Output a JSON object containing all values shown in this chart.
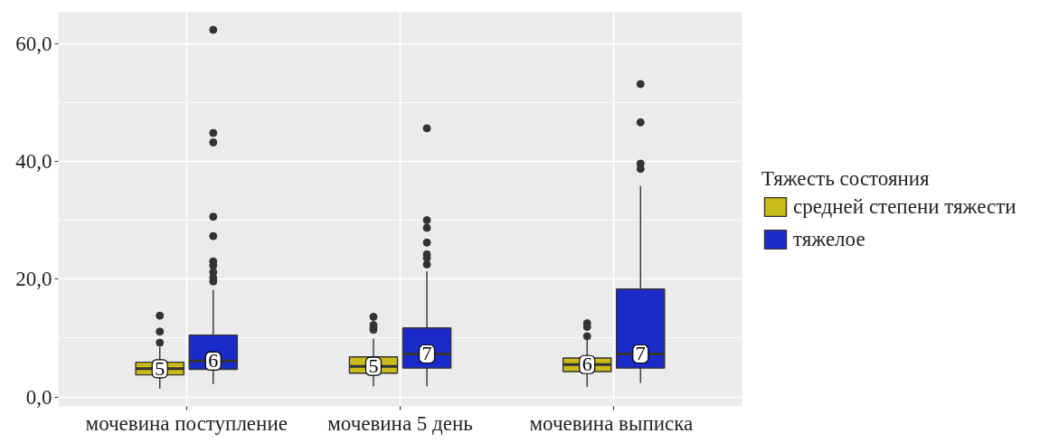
{
  "chart_data": {
    "type": "box",
    "categories": [
      "мочевина поступление",
      "мочевина 5 день",
      "мочевина  выписка"
    ],
    "series": [
      {
        "name": "средней степени тяжести",
        "color": "#c9bb18",
        "value_labels": [
          "5",
          "5",
          "6"
        ],
        "boxes": [
          {
            "low": 1.4,
            "q1": 3.75,
            "median": 4.8,
            "q3": 5.9,
            "high": 8.5,
            "outliers": [
              9.2,
              11.1,
              13.8
            ]
          },
          {
            "low": 1.8,
            "q1": 4.05,
            "median": 5.2,
            "q3": 6.8,
            "high": 9.9,
            "outliers": [
              11.4,
              11.8,
              12.2,
              13.6
            ]
          },
          {
            "low": 1.7,
            "q1": 4.3,
            "median": 5.5,
            "q3": 6.6,
            "high": 9.7,
            "outliers": [
              10.3,
              11.9,
              12.5
            ]
          }
        ]
      },
      {
        "name": "тяжелое",
        "color": "#1b2bca",
        "value_labels": [
          "6",
          "7",
          "7"
        ],
        "boxes": [
          {
            "low": 2.2,
            "q1": 4.7,
            "median": 6.1,
            "q3": 10.5,
            "high": 18.2,
            "outliers": [
              19.6,
              20.2,
              21.2,
              22.3,
              23.0,
              27.3,
              30.6,
              43.2,
              44.8,
              62.3
            ]
          },
          {
            "low": 1.8,
            "q1": 4.9,
            "median": 7.3,
            "q3": 11.7,
            "high": 21.3,
            "outliers": [
              22.5,
              23.6,
              24.2,
              26.2,
              28.7,
              30.0,
              45.6
            ]
          },
          {
            "low": 2.4,
            "q1": 4.9,
            "median": 7.3,
            "q3": 18.3,
            "high": 35.8,
            "outliers": [
              38.7,
              39.6,
              46.6,
              53.1
            ]
          }
        ]
      }
    ],
    "ylim": [
      -1.6,
      65.3
    ],
    "yticks": [
      {
        "value": 0,
        "label": "0,0"
      },
      {
        "value": 20,
        "label": "20,0"
      },
      {
        "value": 40,
        "label": "40,0"
      },
      {
        "value": 60,
        "label": "60,0"
      }
    ],
    "legend_title": "Тяжесть состояния",
    "legend": "right",
    "grid": true,
    "marker": "circle"
  }
}
